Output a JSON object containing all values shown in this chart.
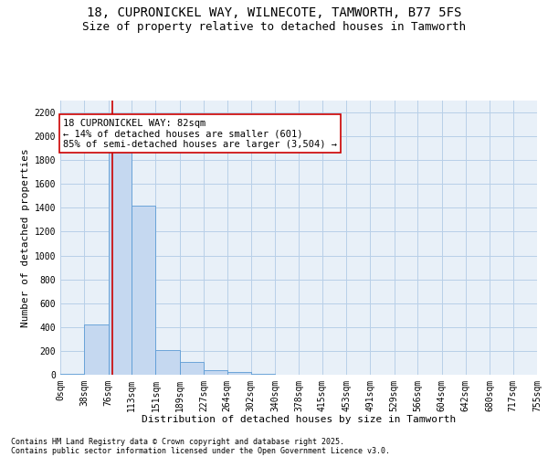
{
  "title_line1": "18, CUPRONICKEL WAY, WILNECOTE, TAMWORTH, B77 5FS",
  "title_line2": "Size of property relative to detached houses in Tamworth",
  "xlabel": "Distribution of detached houses by size in Tamworth",
  "ylabel": "Number of detached properties",
  "bar_color": "#c5d8f0",
  "bar_edge_color": "#5b9bd5",
  "grid_color": "#b8cfe8",
  "bg_color": "#e8f0f8",
  "annotation_box_color": "#cc0000",
  "annotation_text": "18 CUPRONICKEL WAY: 82sqm\n← 14% of detached houses are smaller (601)\n85% of semi-detached houses are larger (3,504) →",
  "property_line_x": 82,
  "bin_edges": [
    0,
    38,
    76,
    113,
    151,
    189,
    227,
    264,
    302,
    340,
    378,
    415,
    453,
    491,
    529,
    566,
    604,
    642,
    680,
    717,
    755
  ],
  "bin_labels": [
    "0sqm",
    "38sqm",
    "76sqm",
    "113sqm",
    "151sqm",
    "189sqm",
    "227sqm",
    "264sqm",
    "302sqm",
    "340sqm",
    "378sqm",
    "415sqm",
    "453sqm",
    "491sqm",
    "529sqm",
    "566sqm",
    "604sqm",
    "642sqm",
    "680sqm",
    "717sqm",
    "755sqm"
  ],
  "bar_heights": [
    5,
    420,
    2100,
    1420,
    210,
    110,
    35,
    20,
    5,
    3,
    2,
    1,
    1,
    0,
    0,
    0,
    0,
    0,
    0,
    0
  ],
  "ylim": [
    0,
    2300
  ],
  "yticks": [
    0,
    200,
    400,
    600,
    800,
    1000,
    1200,
    1400,
    1600,
    1800,
    2000,
    2200
  ],
  "footnote_line1": "Contains HM Land Registry data © Crown copyright and database right 2025.",
  "footnote_line2": "Contains public sector information licensed under the Open Government Licence v3.0.",
  "title_fontsize": 10,
  "subtitle_fontsize": 9,
  "axis_label_fontsize": 8,
  "tick_fontsize": 7,
  "annotation_fontsize": 7.5,
  "footnote_fontsize": 6
}
